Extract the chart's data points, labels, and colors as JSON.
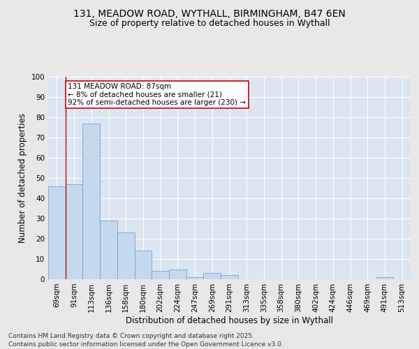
{
  "title_line1": "131, MEADOW ROAD, WYTHALL, BIRMINGHAM, B47 6EN",
  "title_line2": "Size of property relative to detached houses in Wythall",
  "xlabel": "Distribution of detached houses by size in Wythall",
  "ylabel": "Number of detached properties",
  "categories": [
    "69sqm",
    "91sqm",
    "113sqm",
    "136sqm",
    "158sqm",
    "180sqm",
    "202sqm",
    "224sqm",
    "247sqm",
    "269sqm",
    "291sqm",
    "313sqm",
    "335sqm",
    "358sqm",
    "380sqm",
    "402sqm",
    "424sqm",
    "446sqm",
    "469sqm",
    "491sqm",
    "513sqm"
  ],
  "values": [
    46,
    47,
    77,
    29,
    23,
    14,
    4,
    5,
    1,
    3,
    2,
    0,
    0,
    0,
    0,
    0,
    0,
    0,
    0,
    1,
    0
  ],
  "bar_color": "#c5d8ed",
  "bar_edge_color": "#5b9bd5",
  "fig_bg_color": "#e8e8e8",
  "plot_bg_color": "#dce6f1",
  "grid_color": "#ffffff",
  "annotation_text": "131 MEADOW ROAD: 87sqm\n← 8% of detached houses are smaller (21)\n92% of semi-detached houses are larger (230) →",
  "annotation_box_color": "#ffffff",
  "annotation_box_edge": "#cc0000",
  "vline_color": "#cc0000",
  "property_bin_index": 1,
  "ylim": [
    0,
    100
  ],
  "yticks": [
    0,
    10,
    20,
    30,
    40,
    50,
    60,
    70,
    80,
    90,
    100
  ],
  "footer_text": "Contains HM Land Registry data © Crown copyright and database right 2025.\nContains public sector information licensed under the Open Government Licence v3.0.",
  "title_fontsize": 10,
  "subtitle_fontsize": 9,
  "axis_label_fontsize": 8.5,
  "tick_fontsize": 7.5,
  "annotation_fontsize": 7.5,
  "footer_fontsize": 6.5
}
